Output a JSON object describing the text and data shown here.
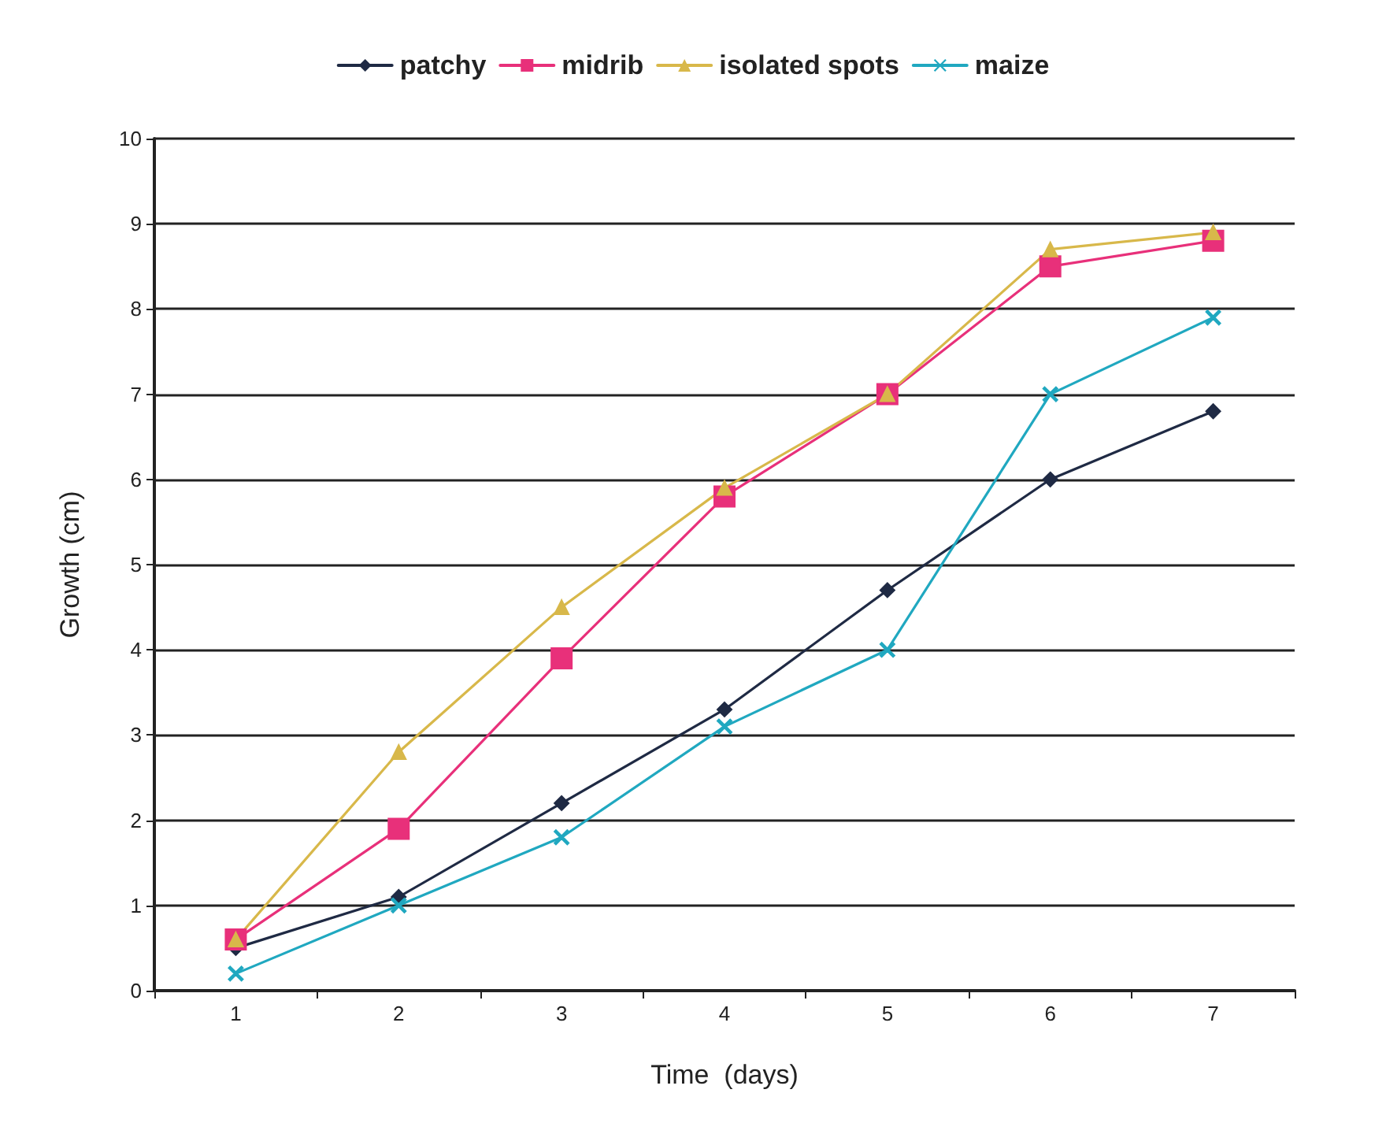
{
  "chart_data": {
    "type": "line",
    "xlabel": "Time  (days)",
    "ylabel": "Growth (cm)",
    "categories": [
      "1",
      "2",
      "3",
      "4",
      "5",
      "6",
      "7"
    ],
    "series": [
      {
        "name": "patchy",
        "color": "#1f2a44",
        "marker": "diamond",
        "values": [
          0.5,
          1.1,
          2.2,
          3.3,
          4.7,
          6.0,
          6.8
        ]
      },
      {
        "name": "midrib",
        "color": "#e8307a",
        "marker": "square",
        "values": [
          0.6,
          1.9,
          3.9,
          5.8,
          7.0,
          8.5,
          8.8
        ]
      },
      {
        "name": "isolated spots",
        "color": "#d8b84a",
        "marker": "triangle",
        "values": [
          0.6,
          2.8,
          4.5,
          5.9,
          7.0,
          8.7,
          8.9
        ]
      },
      {
        "name": "maize",
        "color": "#20a8c0",
        "marker": "cross",
        "values": [
          0.2,
          1.0,
          1.8,
          3.1,
          4.0,
          7.0,
          7.9
        ]
      }
    ],
    "ylim": [
      0,
      10
    ],
    "yticks": [
      0,
      1,
      2,
      3,
      4,
      5,
      6,
      7,
      8,
      9,
      10
    ],
    "grid": "y",
    "legend": "top"
  }
}
